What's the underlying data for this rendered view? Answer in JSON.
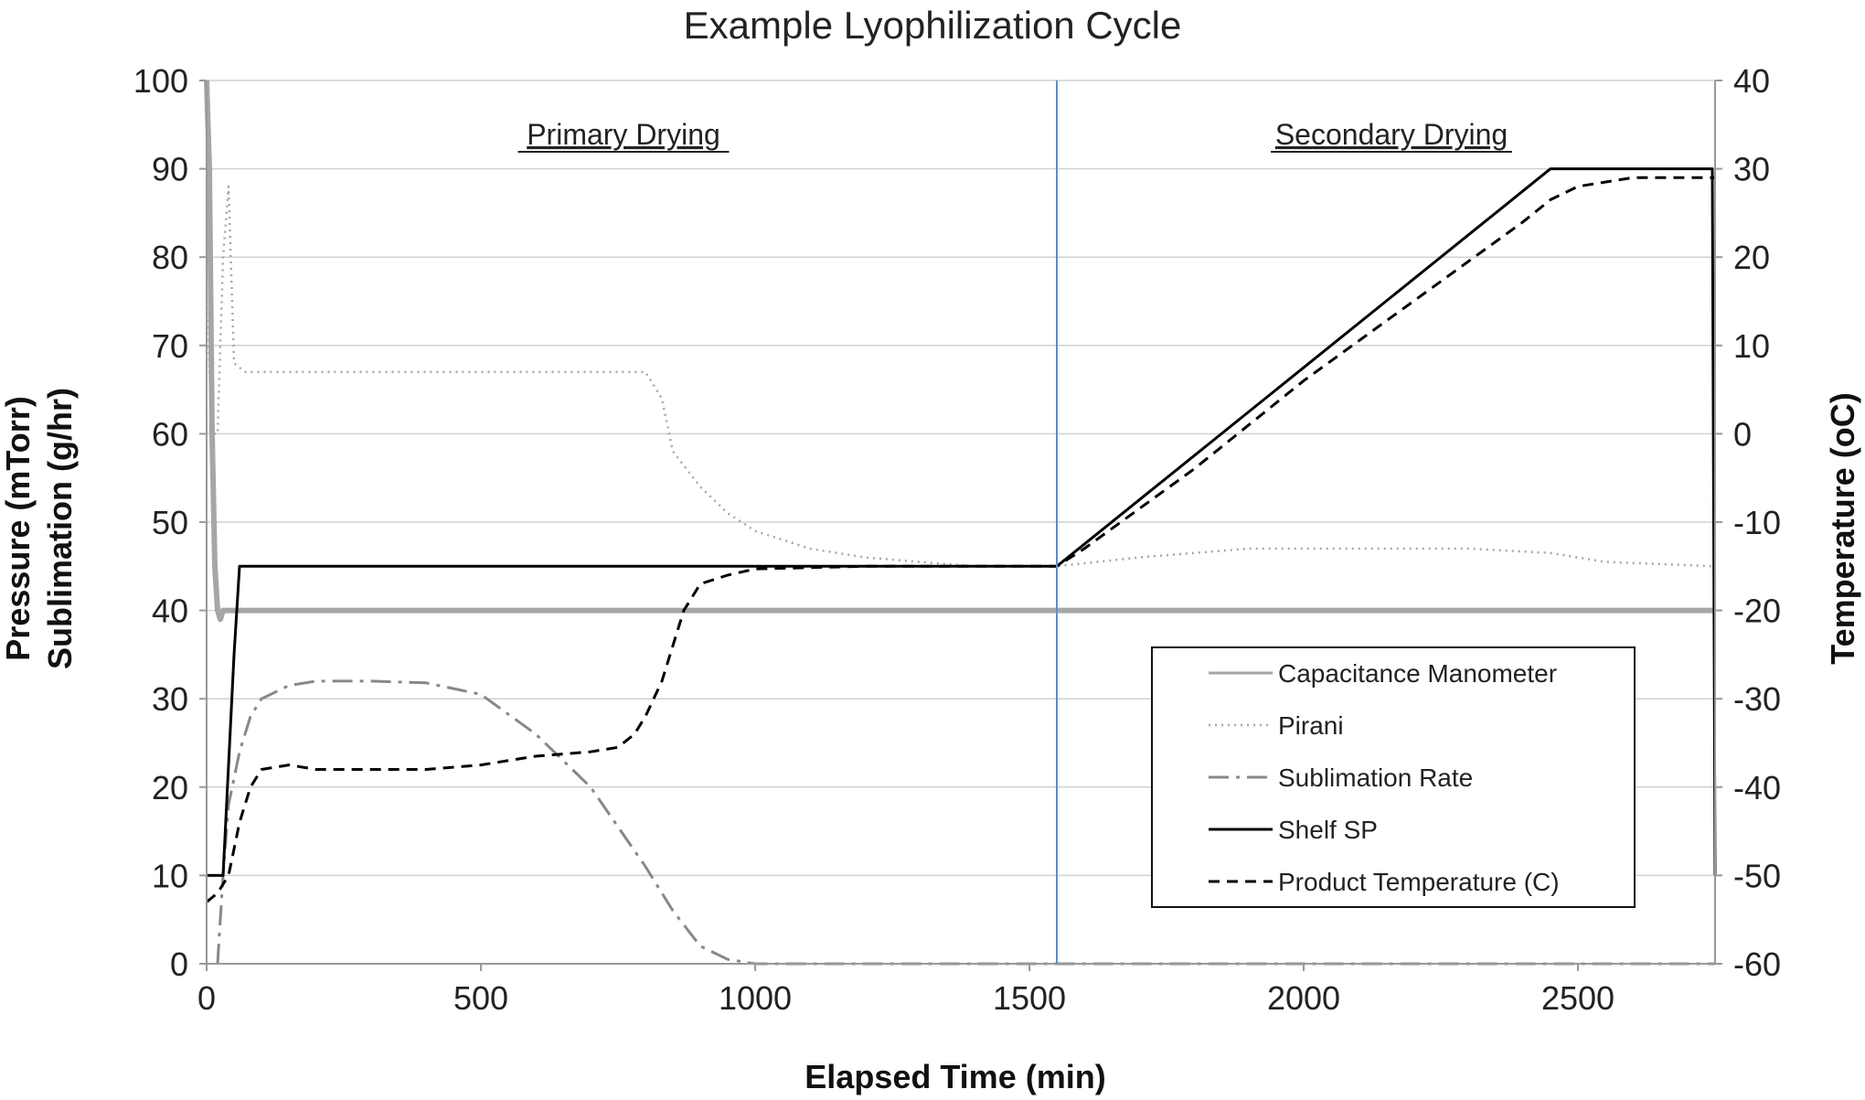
{
  "chart_data": {
    "type": "line",
    "title": "Example Lyophilization Cycle",
    "xlabel": "Elapsed Time (min)",
    "ylabel_left": [
      "Pressure (mTorr)",
      "Sublimation (g/hr)"
    ],
    "ylabel_right": "Temperature (oC)",
    "xlim": [
      0,
      2750
    ],
    "ylim_left": [
      0,
      100
    ],
    "ylim_right": [
      -60,
      40
    ],
    "x_ticks": [
      0,
      500,
      1000,
      1500,
      2000,
      2500
    ],
    "y_ticks_left": [
      0,
      10,
      20,
      30,
      40,
      50,
      60,
      70,
      80,
      90,
      100
    ],
    "y_ticks_right": [
      -60,
      -50,
      -40,
      -30,
      -20,
      -10,
      0,
      10,
      20,
      30,
      40
    ],
    "grid": "horizontal",
    "annotations": [
      {
        "text": "Primary Drying",
        "x": 760,
        "y": 94
      },
      {
        "text": "Secondary Drying",
        "x": 2160,
        "y": 94
      }
    ],
    "phase_divider_x": 1550,
    "phase_divider_color": "#5b8fc9",
    "legend_position": "bottom-right",
    "series": [
      {
        "name": "Capacitance Manometer",
        "axis": "left",
        "style": "solid",
        "color": "#a6a6a6",
        "x": [
          0,
          5,
          10,
          15,
          20,
          25,
          30,
          40,
          60,
          100,
          200,
          500,
          1000,
          1500,
          2000,
          2500,
          2750
        ],
        "y": [
          100,
          90,
          60,
          45,
          40,
          39,
          40,
          40,
          40,
          40,
          40,
          40,
          40,
          40,
          40,
          40,
          40
        ]
      },
      {
        "name": "Pirani",
        "axis": "left",
        "style": "dotted",
        "color": "#a6a6a6",
        "x": [
          0,
          10,
          20,
          30,
          40,
          50,
          70,
          100,
          200,
          400,
          600,
          750,
          800,
          830,
          850,
          900,
          950,
          1000,
          1100,
          1200,
          1300,
          1400,
          1500,
          1550,
          1700,
          1900,
          2100,
          2300,
          2450,
          2550,
          2750
        ],
        "y": [
          75,
          60,
          60,
          80,
          88,
          68,
          67,
          67,
          67,
          67,
          67,
          67,
          67,
          64,
          58,
          54,
          51,
          49,
          47,
          46,
          45.5,
          45,
          45,
          45,
          46,
          47,
          47,
          47,
          46.5,
          45.5,
          45
        ]
      },
      {
        "name": "Sublimation Rate",
        "axis": "left",
        "style": "dash-dot",
        "color": "#888888",
        "x": [
          20,
          30,
          40,
          60,
          80,
          100,
          150,
          200,
          300,
          400,
          500,
          600,
          700,
          800,
          850,
          900,
          950,
          1000,
          1500,
          2000,
          2500,
          2750
        ],
        "y": [
          0,
          10,
          18,
          24,
          28,
          30,
          31.5,
          32,
          32,
          31.8,
          30.5,
          26,
          20,
          11,
          6,
          2,
          0.5,
          0,
          0,
          0,
          0,
          0
        ]
      },
      {
        "name": "Shelf SP",
        "axis": "right",
        "style": "solid",
        "color": "#000000",
        "x": [
          0,
          30,
          50,
          60,
          65,
          1550,
          2450,
          2745,
          2750
        ],
        "y": [
          -50,
          -50,
          -25,
          -15,
          -15,
          -15,
          30,
          30,
          -50
        ]
      },
      {
        "name": "Product Temperature (C)",
        "axis": "right",
        "style": "dashed",
        "color": "#000000",
        "x": [
          0,
          20,
          40,
          60,
          80,
          100,
          150,
          200,
          300,
          400,
          500,
          600,
          700,
          750,
          780,
          800,
          830,
          850,
          870,
          900,
          950,
          1000,
          1200,
          1400,
          1550,
          1600,
          1800,
          2000,
          2200,
          2400,
          2450,
          2500,
          2600,
          2750
        ],
        "y": [
          -53,
          -52,
          -50,
          -44,
          -40,
          -38,
          -37.5,
          -38,
          -38,
          -38,
          -37.5,
          -36.5,
          -36,
          -35.5,
          -34,
          -32,
          -28,
          -24,
          -20,
          -17,
          -16,
          -15.3,
          -15,
          -15,
          -15,
          -13,
          -4,
          6,
          15,
          24,
          26.5,
          28,
          29,
          29
        ]
      }
    ]
  }
}
